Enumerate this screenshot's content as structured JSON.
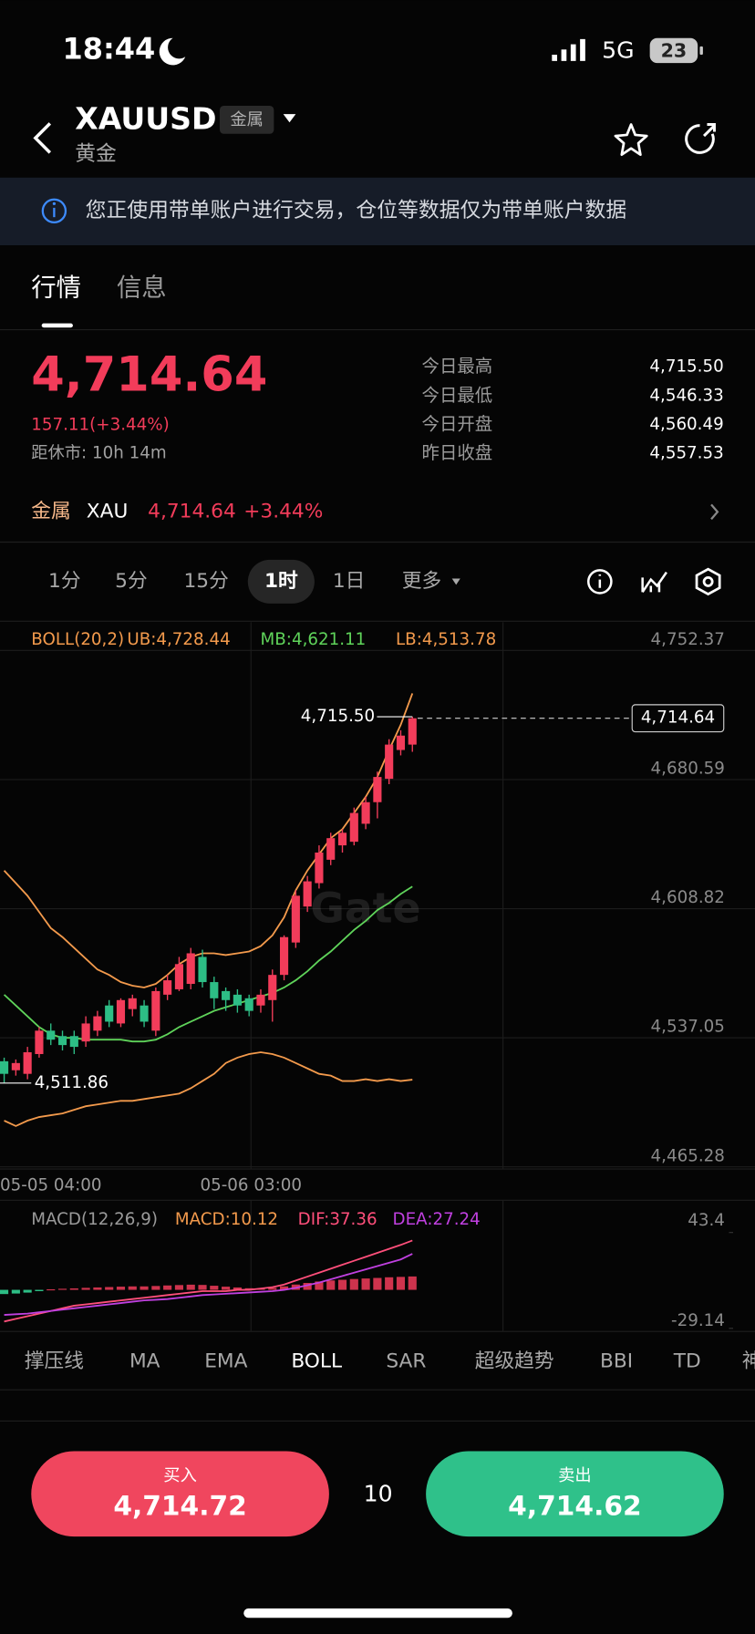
{
  "status_bar": {
    "time": "18:44",
    "network": "5G",
    "battery": "23"
  },
  "header": {
    "symbol": "XAUUSD",
    "tag": "金属",
    "name": "黄金"
  },
  "notice": "您正使用带单账户进行交易，仓位等数据仅为带单账户数据",
  "tabs": [
    "行情",
    "信息"
  ],
  "quote": {
    "price": "4,714.64",
    "change": "157.11(+3.44%)",
    "close_timer": "距休市: 10h 14m",
    "stats": [
      {
        "label": "今日最高",
        "value": "4,715.50"
      },
      {
        "label": "今日最低",
        "value": "4,546.33"
      },
      {
        "label": "今日开盘",
        "value": "4,560.49"
      },
      {
        "label": "昨日收盘",
        "value": "4,557.53"
      }
    ]
  },
  "related": {
    "category": "金属",
    "symbol": "XAU",
    "price": "4,714.64",
    "change": "+3.44%"
  },
  "intervals": [
    "1分",
    "5分",
    "15分",
    "1时",
    "1日",
    "更多"
  ],
  "watermark": "Gate",
  "chart_data": [
    {
      "type": "candlestick",
      "indicator": "BOLL(20,2)",
      "up_color": "#f23c5a",
      "down_color": "#2dbd85",
      "open": [
        4524,
        4519,
        4517,
        4528,
        4541,
        4538,
        4538,
        4535,
        4541,
        4555,
        4545,
        4553,
        4555,
        4541,
        4561,
        4564,
        4567,
        4582,
        4568,
        4563,
        4561,
        4559,
        4555,
        4558,
        4572,
        4590,
        4610,
        4623,
        4636,
        4644,
        4646,
        4656,
        4668,
        4681,
        4697,
        4700
      ],
      "high": [
        4526,
        4525,
        4532,
        4543,
        4545,
        4541,
        4541,
        4549,
        4552,
        4558,
        4559,
        4561,
        4558,
        4565,
        4572,
        4582,
        4587,
        4586,
        4571,
        4565,
        4564,
        4561,
        4564,
        4575,
        4594,
        4619,
        4627,
        4644,
        4651,
        4653,
        4665,
        4671,
        4685,
        4703,
        4708,
        4715.5
      ],
      "low": [
        4511.86,
        4516,
        4514,
        4526,
        4533,
        4530,
        4528,
        4532,
        4538,
        4543,
        4543,
        4549,
        4543,
        4538,
        4558,
        4563,
        4564,
        4565,
        4553,
        4552,
        4551,
        4549,
        4551,
        4546,
        4569,
        4587,
        4607,
        4620,
        4633,
        4640,
        4644,
        4653,
        4659,
        4678,
        4694,
        4696
      ],
      "close": [
        4517,
        4523,
        4529,
        4541,
        4536,
        4533,
        4532,
        4545,
        4549,
        4546,
        4558,
        4559,
        4546,
        4563,
        4569,
        4578,
        4584,
        4568,
        4559,
        4558,
        4555,
        4552,
        4561,
        4572,
        4593,
        4616,
        4624,
        4640,
        4648,
        4651,
        4662,
        4668,
        4682,
        4700,
        4705,
        4714.64
      ],
      "series": [
        {
          "name": "UB:4,728.44",
          "color": "#f39a4c",
          "values": [
            4630,
            4623,
            4616,
            4607,
            4598,
            4593,
            4587,
            4581,
            4575,
            4572,
            4568,
            4566,
            4565,
            4567,
            4572,
            4578,
            4582,
            4584,
            4584,
            4583,
            4584,
            4585,
            4588,
            4594,
            4604,
            4619,
            4630,
            4639,
            4648,
            4653,
            4662,
            4671,
            4682,
            4697,
            4711,
            4728.44
          ]
        },
        {
          "name": "MB:4,621.11",
          "color": "#5fd35a",
          "values": [
            4561,
            4555,
            4549,
            4543,
            4539,
            4537,
            4537,
            4536,
            4536,
            4536,
            4536,
            4535,
            4535,
            4536,
            4539,
            4543,
            4546,
            4549,
            4552,
            4554,
            4556,
            4558,
            4560,
            4562,
            4565,
            4569,
            4574,
            4580,
            4585,
            4591,
            4597,
            4602,
            4608,
            4612,
            4617,
            4621.11
          ]
        },
        {
          "name": "LB:4,513.78",
          "color": "#f39a4c",
          "values": [
            4491,
            4488,
            4491,
            4493,
            4494,
            4495,
            4497,
            4499,
            4500,
            4501,
            4502,
            4502,
            4503,
            4504,
            4505,
            4506,
            4509,
            4513,
            4517,
            4523,
            4526,
            4528,
            4529,
            4528,
            4526,
            4523,
            4520,
            4517,
            4516,
            4513,
            4513,
            4514,
            4513,
            4514,
            4513,
            4513.78
          ]
        }
      ],
      "ylim": [
        4465.28,
        4752.37
      ],
      "yticks": [
        {
          "value": 4752.37,
          "label": "4,752.37"
        },
        {
          "value": 4680.59,
          "label": "4,680.59"
        },
        {
          "value": 4608.82,
          "label": "4,608.82"
        },
        {
          "value": 4537.05,
          "label": "4,537.05"
        },
        {
          "value": 4465.28,
          "label": "4,465.28"
        }
      ],
      "x_tick_labels": [
        "05-05 04:00",
        "05-06 03:00"
      ],
      "annotations": {
        "high": {
          "value": 4715.5,
          "label": "4,715.50"
        },
        "low": {
          "value": 4511.86,
          "label": "4,511.86"
        },
        "last": {
          "value": 4714.64,
          "label": "4,714.64"
        }
      },
      "grid": true
    },
    {
      "type": "macd",
      "indicator": "MACD(12,26,9)",
      "up_color": "#f23c5a",
      "down_color": "#2dbd85",
      "series": [
        {
          "name": "MACD:10.12",
          "color": "#f39a4c",
          "kind": "bar",
          "values": [
            -3.2,
            -2.8,
            -2.1,
            -1.0,
            0.4,
            0.8,
            1.1,
            1.5,
            1.8,
            2.1,
            2.4,
            2.6,
            2.6,
            2.9,
            3.3,
            3.6,
            3.9,
            3.7,
            3.1,
            2.4,
            1.8,
            1.2,
            0.9,
            1.5,
            2.6,
            4.0,
            5.2,
            6.3,
            7.1,
            7.6,
            8.2,
            8.6,
            9.0,
            9.5,
            9.8,
            10.12
          ]
        },
        {
          "name": "DIF:37.36",
          "color": "#ff4f7b",
          "kind": "line",
          "values": [
            -24,
            -22,
            -20,
            -18,
            -16,
            -14,
            -12,
            -11,
            -10,
            -9,
            -8,
            -7,
            -6,
            -5,
            -4,
            -3,
            -2,
            -1,
            -1,
            -1,
            0,
            0,
            1,
            2,
            4,
            7,
            10,
            13,
            16,
            19,
            22,
            25,
            28,
            31,
            34,
            37.36
          ]
        },
        {
          "name": "DEA:27.24",
          "color": "#c040e0",
          "kind": "line",
          "values": [
            -19,
            -18.5,
            -18,
            -17,
            -16,
            -15,
            -14,
            -13,
            -12,
            -11,
            -10,
            -9,
            -8,
            -7.5,
            -7,
            -6,
            -5,
            -4,
            -3.5,
            -3,
            -2.5,
            -2,
            -1.5,
            -1,
            0,
            1.5,
            3.5,
            5.5,
            8,
            10.5,
            13,
            15.5,
            18,
            20.5,
            23,
            27.24
          ]
        }
      ],
      "ylim": [
        -29.14,
        43.4
      ],
      "yticks": [
        43.4,
        -29.14
      ]
    }
  ],
  "indicators": [
    "撑压线",
    "MA",
    "EMA",
    "BOLL",
    "SAR",
    "超级趋势",
    "BBI",
    "TD",
    "神"
  ],
  "trade": {
    "buy_label": "买入",
    "buy_price": "4,714.72",
    "quantity": "10",
    "sell_label": "卖出",
    "sell_price": "4,714.62"
  }
}
